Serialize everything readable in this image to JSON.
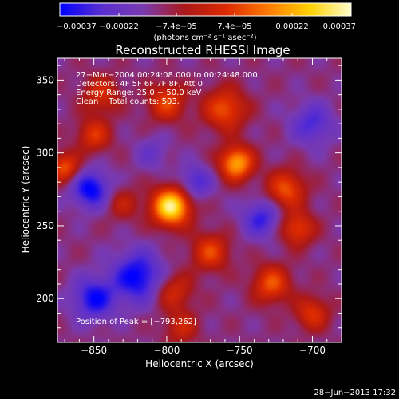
{
  "chart_data": {
    "type": "heatmap",
    "title": "Reconstructed RHESSI Image",
    "xlabel": "Heliocentric X (arcsec)",
    "ylabel": "Heliocentric Y (arcsec)",
    "xlim": [
      -875,
      -680
    ],
    "ylim": [
      170,
      365
    ],
    "x_ticks": [
      -850,
      -800,
      -750,
      -700
    ],
    "x_tick_labels": [
      "−850",
      "−800",
      "−750",
      "−700"
    ],
    "y_ticks": [
      200,
      250,
      300,
      350
    ],
    "y_tick_labels": [
      "200",
      "250",
      "300",
      "350"
    ],
    "colorbar": {
      "min": -0.00037,
      "max": 0.00037,
      "ticks": [
        -0.00037,
        -0.00022,
        -7.4e-05,
        7.4e-05,
        0.00022,
        0.00037
      ],
      "tick_labels": [
        "−0.00037",
        "−0.00022",
        "−7.4e−05",
        "7.4e−05",
        "0.00022",
        "0.00037"
      ],
      "unit_label": "(photons cm⁻² s⁻¹ asec⁻²)",
      "colors": [
        "#0000ff",
        "#5a2fd0",
        "#7a3ab0",
        "#aa1818",
        "#dd2a00",
        "#ff7a00",
        "#ffd000",
        "#ffffcc"
      ]
    },
    "annotations": {
      "time_range": "27−Mar−2004 00:24:08.000 to 00:24:48.000",
      "detectors": "Detectors: 4F 5F 6F 7F 8F, Att 0",
      "energy_range": "Energy Range: 25.0 − 50.0 keV",
      "method": "Clean    Total counts: 503.",
      "peak": "Position of Peak = [−793,262]"
    },
    "peak_position": [
      -793,
      262
    ],
    "sources": [
      {
        "x": -797,
        "y": 263,
        "amp": 1.0,
        "s": 9
      },
      {
        "x": -752,
        "y": 293,
        "amp": 0.75,
        "s": 8
      },
      {
        "x": -760,
        "y": 330,
        "amp": 0.5,
        "s": 10
      },
      {
        "x": -800,
        "y": 335,
        "amp": 0.45,
        "s": 9
      },
      {
        "x": -845,
        "y": 340,
        "amp": 0.35,
        "s": 9
      },
      {
        "x": -850,
        "y": 312,
        "amp": 0.4,
        "s": 8
      },
      {
        "x": -870,
        "y": 290,
        "amp": 0.5,
        "s": 7
      },
      {
        "x": -718,
        "y": 275,
        "amp": 0.5,
        "s": 9
      },
      {
        "x": -710,
        "y": 248,
        "amp": 0.45,
        "s": 8
      },
      {
        "x": -728,
        "y": 210,
        "amp": 0.5,
        "s": 9
      },
      {
        "x": -700,
        "y": 190,
        "amp": 0.4,
        "s": 8
      },
      {
        "x": -770,
        "y": 232,
        "amp": 0.45,
        "s": 9
      },
      {
        "x": -795,
        "y": 205,
        "amp": 0.35,
        "s": 9
      },
      {
        "x": -790,
        "y": 180,
        "amp": 0.3,
        "s": 8
      },
      {
        "x": -830,
        "y": 265,
        "amp": 0.25,
        "s": 8
      },
      {
        "x": -852,
        "y": 275,
        "amp": -0.55,
        "s": 9
      },
      {
        "x": -820,
        "y": 215,
        "amp": -0.55,
        "s": 12
      },
      {
        "x": -850,
        "y": 200,
        "amp": -0.5,
        "s": 10
      },
      {
        "x": -780,
        "y": 280,
        "amp": -0.35,
        "s": 8
      },
      {
        "x": -735,
        "y": 255,
        "amp": -0.4,
        "s": 9
      },
      {
        "x": -700,
        "y": 320,
        "amp": -0.35,
        "s": 10
      },
      {
        "x": -810,
        "y": 300,
        "amp": -0.2,
        "s": 8
      }
    ]
  },
  "footer": {
    "timestamp": "28−Jun−2013 17:32"
  }
}
